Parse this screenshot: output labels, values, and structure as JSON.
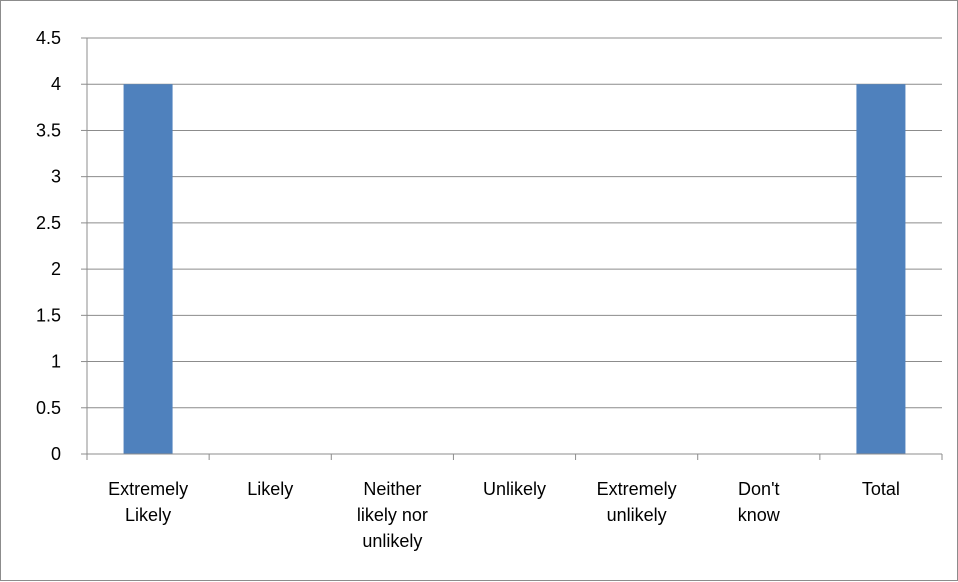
{
  "chart_data": {
    "type": "bar",
    "categories": [
      [
        "Extremely",
        "Likely"
      ],
      [
        "Likely"
      ],
      [
        "Neither",
        "likely nor",
        "unlikely"
      ],
      [
        "Unlikely"
      ],
      [
        "Extremely",
        "unlikely"
      ],
      [
        "Don't",
        "know"
      ],
      [
        "Total"
      ]
    ],
    "values": [
      4,
      0,
      0,
      0,
      0,
      0,
      4
    ],
    "title": "",
    "xlabel": "",
    "ylabel": "",
    "ylim": [
      0,
      4.5
    ],
    "yticks": [
      "0",
      "0.5",
      "1",
      "1.5",
      "2",
      "2.5",
      "3",
      "3.5",
      "4",
      "4.5"
    ],
    "grid": true,
    "legend": "none",
    "bar_color": "#4f81bd",
    "grid_color": "#8c8c8c"
  }
}
